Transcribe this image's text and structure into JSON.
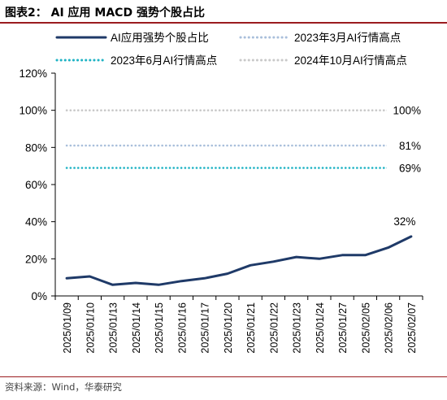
{
  "title": "图表2：  AI 应用 MACD 强势个股占比",
  "source": "资料来源：Wind，华泰研究",
  "colors": {
    "accent_rule": "#9b1c20",
    "main_line": "#1f3a68",
    "ref_2023_03": "#a9bfdb",
    "ref_2023_06": "#1fb3c4",
    "ref_2024_10": "#c9c9c9"
  },
  "chart_data": {
    "type": "line",
    "title": "",
    "xlabel": "",
    "ylabel": "",
    "ylim": [
      0,
      120
    ],
    "yticks": [
      "0%",
      "20%",
      "40%",
      "60%",
      "80%",
      "100%",
      "120%"
    ],
    "ytick_values": [
      0,
      20,
      40,
      60,
      80,
      100,
      120
    ],
    "categories": [
      "2025/01/09",
      "2025/01/10",
      "2025/01/13",
      "2025/01/14",
      "2025/01/15",
      "2025/01/16",
      "2025/01/17",
      "2025/01/20",
      "2025/01/21",
      "2025/01/22",
      "2025/01/23",
      "2025/01/24",
      "2025/01/27",
      "2025/02/05",
      "2025/02/06",
      "2025/02/07"
    ],
    "legend_position": "top",
    "grid": false,
    "series": [
      {
        "name": "AI应用强势个股占比",
        "style": "solid",
        "values": [
          9.5,
          10.5,
          6,
          7,
          6,
          8,
          9.5,
          12,
          16.5,
          18.5,
          21,
          20,
          22,
          22,
          26,
          32
        ],
        "end_label": "32%"
      },
      {
        "name": "2023年3月AI行情高点",
        "style": "dotted",
        "values": [
          81,
          81,
          81,
          81,
          81,
          81,
          81,
          81,
          81,
          81,
          81,
          81,
          81,
          81,
          81,
          81
        ],
        "end_label": "81%"
      },
      {
        "name": "2023年6月AI行情高点",
        "style": "dotted",
        "values": [
          69,
          69,
          69,
          69,
          69,
          69,
          69,
          69,
          69,
          69,
          69,
          69,
          69,
          69,
          69,
          69
        ],
        "end_label": "69%"
      },
      {
        "name": "2024年10月AI行情高点",
        "style": "dotted",
        "values": [
          100,
          100,
          100,
          100,
          100,
          100,
          100,
          100,
          100,
          100,
          100,
          100,
          100,
          100,
          100,
          100
        ],
        "end_label": "100%"
      }
    ]
  }
}
